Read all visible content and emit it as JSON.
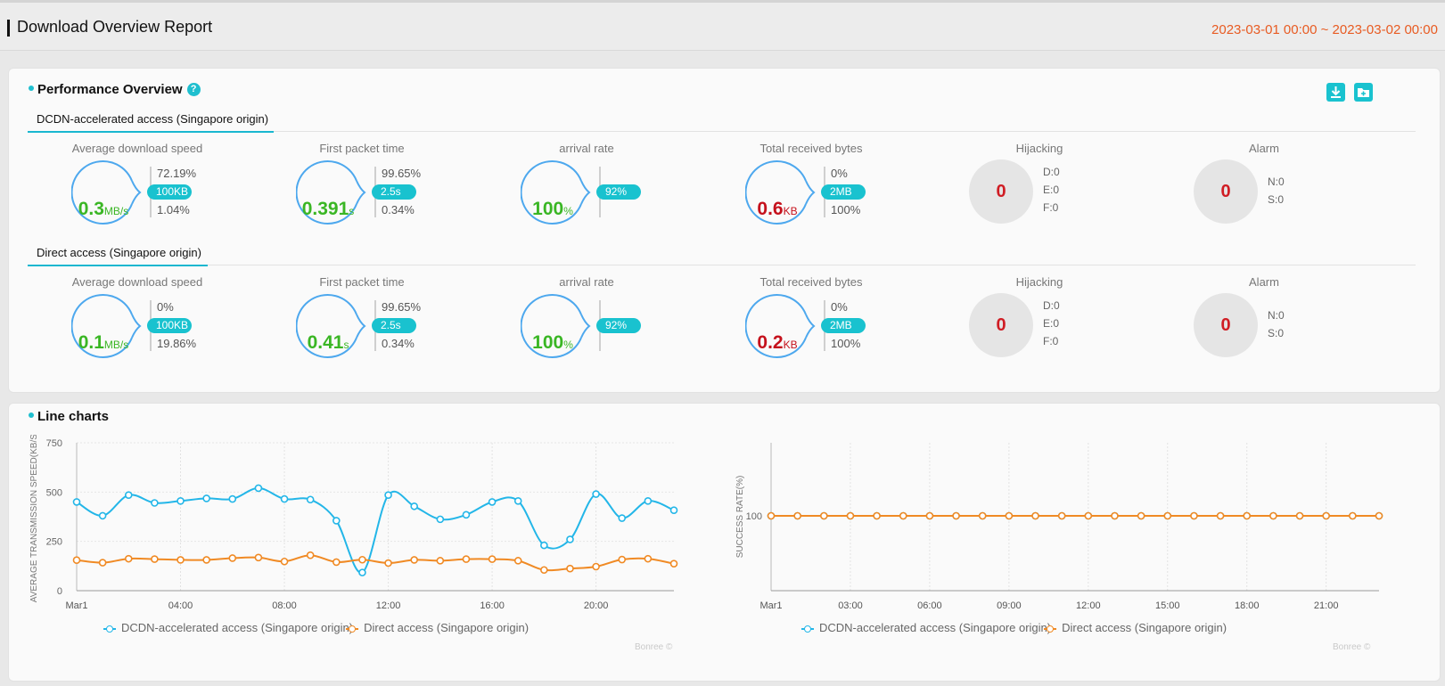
{
  "header": {
    "title": "Download Overview Report",
    "date_range": "2023-03-01 00:00 ~ 2023-03-02 00:00"
  },
  "performance": {
    "title": "Performance Overview",
    "help_icon": "question-circle-icon",
    "tools": {
      "download_icon": "download-icon",
      "save_icon": "folder-plus-icon"
    },
    "groups": [
      {
        "tab": "DCDN-accelerated access (Singapore origin)",
        "metrics": {
          "speed": {
            "label": "Average download speed",
            "value": "0.3",
            "unit": "MB/s",
            "top": "72.19%",
            "threshold": "100KB",
            "bottom": "1.04%"
          },
          "first_packet": {
            "label": "First packet time",
            "value": "0.391",
            "unit": "s",
            "top": "99.65%",
            "threshold": "2.5s",
            "bottom": "0.34%"
          },
          "arrival": {
            "label": "arrival rate",
            "value": "100",
            "unit": "%",
            "threshold": "92%"
          },
          "bytes": {
            "label": "Total received bytes",
            "value": "0.6",
            "unit": "KB",
            "top": "0%",
            "threshold": "2MB",
            "bottom": "100%"
          },
          "hijacking": {
            "label": "Hijacking",
            "value": "0",
            "d": "D:0",
            "e": "E:0",
            "f": "F:0"
          },
          "alarm": {
            "label": "Alarm",
            "value": "0",
            "n": "N:0",
            "s": "S:0"
          }
        }
      },
      {
        "tab": "Direct access (Singapore origin)",
        "metrics": {
          "speed": {
            "label": "Average download speed",
            "value": "0.1",
            "unit": "MB/s",
            "top": "0%",
            "threshold": "100KB",
            "bottom": "19.86%"
          },
          "first_packet": {
            "label": "First packet time",
            "value": "0.41",
            "unit": "s",
            "top": "99.65%",
            "threshold": "2.5s",
            "bottom": "0.34%"
          },
          "arrival": {
            "label": "arrival rate",
            "value": "100",
            "unit": "%",
            "threshold": "92%"
          },
          "bytes": {
            "label": "Total received bytes",
            "value": "0.2",
            "unit": "KB",
            "top": "0%",
            "threshold": "2MB",
            "bottom": "100%"
          },
          "hijacking": {
            "label": "Hijacking",
            "value": "0",
            "d": "D:0",
            "e": "E:0",
            "f": "F:0"
          },
          "alarm": {
            "label": "Alarm",
            "value": "0",
            "n": "N:0",
            "s": "S:0"
          }
        }
      }
    ]
  },
  "line_charts": {
    "title": "Line charts",
    "credit": "Bonree ©"
  },
  "chart_data": [
    {
      "type": "line",
      "ylabel": "AVERAGE TRANSMISSION SPEED(KB/S)",
      "ylim": [
        0,
        750
      ],
      "yticks": [
        "0",
        "250",
        "500",
        "750"
      ],
      "xtick_labels": [
        "Mar1",
        "04:00",
        "08:00",
        "12:00",
        "16:00",
        "20:00"
      ],
      "x_hours": [
        0,
        1,
        2,
        3,
        4,
        5,
        6,
        7,
        8,
        9,
        10,
        11,
        12,
        13,
        14,
        15,
        16,
        17,
        18,
        19,
        20,
        21,
        22,
        23
      ],
      "legend_position": "bottom",
      "series": [
        {
          "name": "DCDN-accelerated access (Singapore origin)",
          "color": "#23b6e8",
          "values": [
            450,
            380,
            485,
            445,
            455,
            468,
            465,
            520,
            465,
            462,
            355,
            92,
            485,
            428,
            362,
            385,
            450,
            455,
            230,
            260,
            490,
            368,
            455,
            408
          ]
        },
        {
          "name": "Direct access (Singapore origin)",
          "color": "#f08a24",
          "values": [
            155,
            142,
            162,
            160,
            156,
            156,
            165,
            168,
            148,
            180,
            145,
            157,
            140,
            156,
            152,
            160,
            160,
            152,
            105,
            112,
            122,
            158,
            162,
            137
          ]
        }
      ]
    },
    {
      "type": "line",
      "ylabel": "SUCCESS RATE(%)",
      "yticks": [
        "100"
      ],
      "xtick_labels": [
        "Mar1",
        "03:00",
        "06:00",
        "09:00",
        "12:00",
        "15:00",
        "18:00",
        "21:00"
      ],
      "x_hours": [
        0,
        1,
        2,
        3,
        4,
        5,
        6,
        7,
        8,
        9,
        10,
        11,
        12,
        13,
        14,
        15,
        16,
        17,
        18,
        19,
        20,
        21,
        22,
        23
      ],
      "legend_position": "bottom",
      "series": [
        {
          "name": "DCDN-accelerated access (Singapore origin)",
          "color": "#23b6e8",
          "values": [
            100,
            100,
            100,
            100,
            100,
            100,
            100,
            100,
            100,
            100,
            100,
            100,
            100,
            100,
            100,
            100,
            100,
            100,
            100,
            100,
            100,
            100,
            100,
            100
          ]
        },
        {
          "name": "Direct access (Singapore origin)",
          "color": "#f08a24",
          "values": [
            100,
            100,
            100,
            100,
            100,
            100,
            100,
            100,
            100,
            100,
            100,
            100,
            100,
            100,
            100,
            100,
            100,
            100,
            100,
            100,
            100,
            100,
            100,
            100
          ]
        }
      ]
    }
  ]
}
